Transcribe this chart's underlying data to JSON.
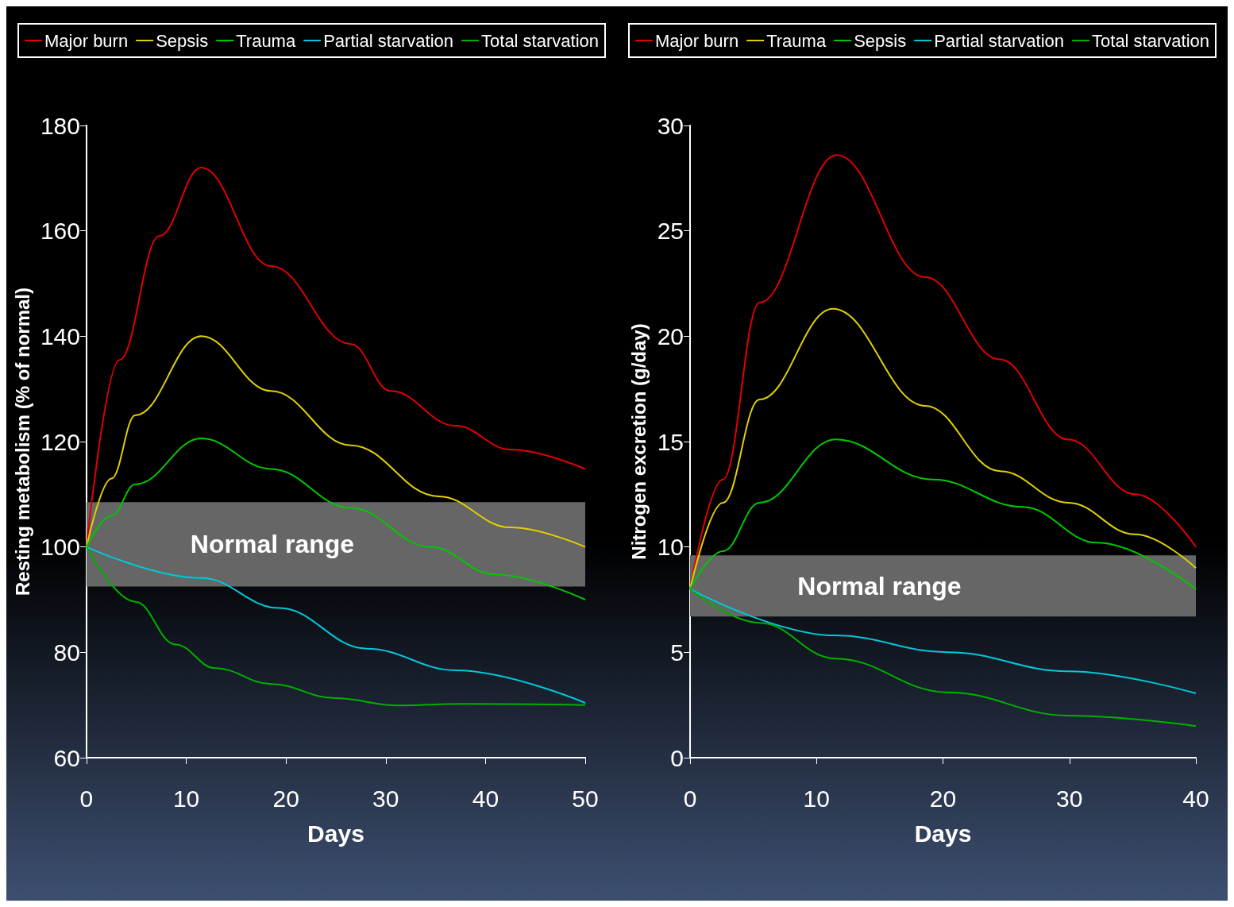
{
  "chart_data": [
    {
      "type": "line",
      "xlabel": "Days",
      "ylabel": "Resting metabolism (% of normal)",
      "xlim": [
        0,
        50
      ],
      "xticks": [
        0,
        10,
        20,
        30,
        40,
        50
      ],
      "ylim": [
        60,
        180
      ],
      "yticks": [
        60,
        80,
        100,
        120,
        140,
        160,
        180
      ],
      "grid": false,
      "legend": "top",
      "marker": "none",
      "line_style": "solid",
      "bands": [
        {
          "axis": "y",
          "from": 92.5,
          "to": 108.5,
          "label": "Normal range",
          "color": "#666666"
        }
      ],
      "series": [
        {
          "name": "Major burn",
          "color": "#e00000",
          "x": [
            0,
            3.3,
            7.3,
            11.5,
            18.5,
            26.5,
            30.5,
            37,
            42.5,
            50
          ],
          "values": [
            100,
            135.5,
            159,
            172,
            153.3,
            138.5,
            129.6,
            123,
            118.5,
            114.8
          ]
        },
        {
          "name": "Sepsis",
          "color": "#e0d000",
          "x": [
            0,
            2.5,
            4.9,
            11.5,
            18.5,
            26.5,
            35.3,
            42.5,
            50
          ],
          "values": [
            100,
            113,
            125,
            140,
            129.6,
            119.3,
            109.6,
            103.7,
            100
          ]
        },
        {
          "name": "Trauma",
          "color": "#00c800",
          "x": [
            0,
            2.5,
            4.9,
            11.5,
            18.5,
            26.5,
            34.5,
            40.9,
            50
          ],
          "values": [
            100,
            105.9,
            111.9,
            120.6,
            114.8,
            107.4,
            100,
            94.8,
            90
          ]
        },
        {
          "name": "Partial starvation",
          "color": "#00c8d8",
          "x": [
            0,
            11.5,
            19.3,
            28.1,
            37,
            50
          ],
          "values": [
            100,
            94.1,
            88.4,
            80.7,
            76.6,
            70.4
          ]
        },
        {
          "name": "Total starvation",
          "color": "#00b000",
          "x": [
            0,
            4.9,
            8.9,
            12.9,
            18.5,
            24.9,
            31.3,
            37.7,
            50
          ],
          "values": [
            100,
            89.6,
            81.5,
            77,
            74,
            71.3,
            69.9,
            70.2,
            70
          ]
        }
      ]
    },
    {
      "type": "line",
      "xlabel": "Days",
      "ylabel": "Nitrogen excretion (g/day)",
      "xlim": [
        0,
        40
      ],
      "xticks": [
        0,
        10,
        20,
        30,
        40
      ],
      "ylim": [
        0,
        30
      ],
      "yticks": [
        0,
        5,
        10,
        15,
        20,
        25,
        30
      ],
      "grid": false,
      "legend": "top",
      "marker": "none",
      "line_style": "solid",
      "bands": [
        {
          "axis": "y",
          "from": 6.7,
          "to": 9.6,
          "label": "Normal range",
          "color": "#666666"
        }
      ],
      "series": [
        {
          "name": "Major burn",
          "color": "#e00000",
          "x": [
            0,
            2.6,
            5.5,
            11.6,
            18.6,
            24.5,
            29.9,
            35.2,
            40
          ],
          "values": [
            8,
            13.2,
            21.6,
            28.6,
            22.8,
            18.9,
            15.1,
            12.5,
            10
          ]
        },
        {
          "name": "Trauma",
          "color": "#e0d000",
          "x": [
            0,
            2.6,
            5.5,
            11.3,
            18.6,
            24.5,
            29.9,
            35.2,
            40
          ],
          "values": [
            8,
            12.1,
            17,
            21.3,
            16.7,
            13.6,
            12.1,
            10.6,
            9
          ]
        },
        {
          "name": "Sepsis",
          "color": "#00c800",
          "x": [
            0,
            2.6,
            5.5,
            11.5,
            19.2,
            26.3,
            32.2,
            40
          ],
          "values": [
            8,
            9.8,
            12.1,
            15.1,
            13.2,
            11.9,
            10.2,
            8
          ]
        },
        {
          "name": "Partial starvation",
          "color": "#00c8d8",
          "x": [
            0,
            11.5,
            20.4,
            29.9,
            40
          ],
          "values": [
            8,
            5.8,
            5,
            4.1,
            3.05
          ]
        },
        {
          "name": "Total starvation",
          "color": "#00b000",
          "x": [
            0,
            5.5,
            11.5,
            20.4,
            29.9,
            40
          ],
          "values": [
            8,
            6.4,
            4.7,
            3.1,
            2,
            1.5
          ]
        }
      ]
    }
  ]
}
